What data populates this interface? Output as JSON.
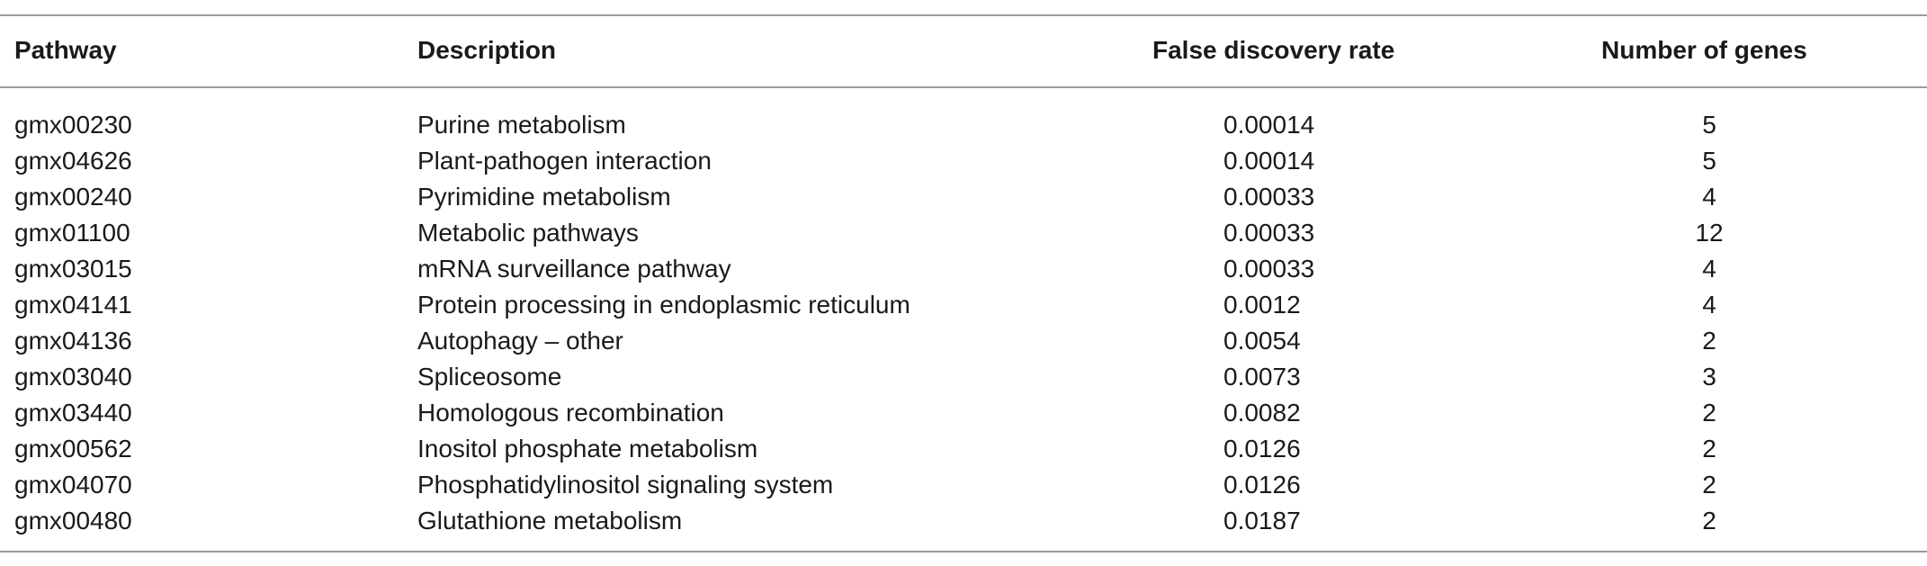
{
  "table": {
    "headers": {
      "pathway": "Pathway",
      "description": "Description",
      "fdr": "False discovery rate",
      "genes": "Number of genes"
    },
    "rows": [
      {
        "pathway": "gmx00230",
        "description": "Purine metabolism",
        "fdr": "0.00014",
        "genes": "5"
      },
      {
        "pathway": "gmx04626",
        "description": "Plant-pathogen interaction",
        "fdr": "0.00014",
        "genes": "5"
      },
      {
        "pathway": "gmx00240",
        "description": "Pyrimidine metabolism",
        "fdr": "0.00033",
        "genes": "4"
      },
      {
        "pathway": "gmx01100",
        "description": "Metabolic pathways",
        "fdr": "0.00033",
        "genes": "12"
      },
      {
        "pathway": "gmx03015",
        "description": "mRNA surveillance pathway",
        "fdr": "0.00033",
        "genes": "4"
      },
      {
        "pathway": "gmx04141",
        "description": "Protein processing in endoplasmic reticulum",
        "fdr": "0.0012",
        "genes": "4"
      },
      {
        "pathway": "gmx04136",
        "description": "Autophagy – other",
        "fdr": "0.0054",
        "genes": "2"
      },
      {
        "pathway": "gmx03040",
        "description": "Spliceosome",
        "fdr": "0.0073",
        "genes": "3"
      },
      {
        "pathway": "gmx03440",
        "description": "Homologous recombination",
        "fdr": "0.0082",
        "genes": "2"
      },
      {
        "pathway": "gmx00562",
        "description": "Inositol phosphate metabolism",
        "fdr": "0.0126",
        "genes": "2"
      },
      {
        "pathway": "gmx04070",
        "description": "Phosphatidylinositol signaling system",
        "fdr": "0.0126",
        "genes": "2"
      },
      {
        "pathway": "gmx00480",
        "description": "Glutathione metabolism",
        "fdr": "0.0187",
        "genes": "2"
      }
    ]
  }
}
